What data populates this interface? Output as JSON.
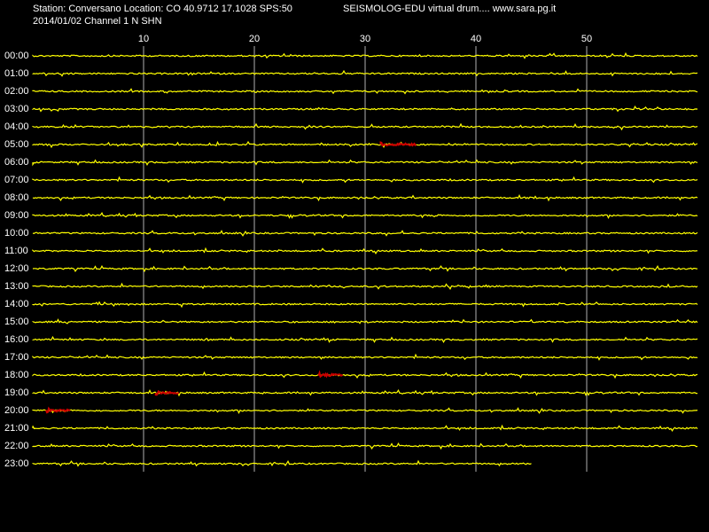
{
  "header": {
    "station": "Station: Conversano Location: CO 40.9712 17.1028 SPS:50",
    "title": "SEISMOLOG-EDU virtual drum.... www.sara.pg.it",
    "date_channel": "2014/01/02  Channel 1 N SHN"
  },
  "chart_data": {
    "type": "drum",
    "xlim": [
      0,
      60
    ],
    "xticks": [
      10,
      20,
      30,
      40,
      50
    ],
    "grid": true,
    "rows": [
      "00:00",
      "01:00",
      "02:00",
      "03:00",
      "04:00",
      "05:00",
      "06:00",
      "07:00",
      "08:00",
      "09:00",
      "10:00",
      "11:00",
      "12:00",
      "13:00",
      "14:00",
      "15:00",
      "16:00",
      "17:00",
      "18:00",
      "19:00",
      "20:00",
      "21:00",
      "22:00",
      "23:00"
    ],
    "last_row_end": 45,
    "trace_color": "#ffff00",
    "event_color": "#cc0000",
    "grid_color": "#b0b0b0",
    "events": [
      {
        "row": 5,
        "start": 31.4,
        "end": 34.6
      },
      {
        "row": 18,
        "start": 25.8,
        "end": 28
      },
      {
        "row": 19,
        "start": 11.1,
        "end": 13.2
      },
      {
        "row": 20,
        "start": 1.2,
        "end": 3.4
      }
    ]
  }
}
